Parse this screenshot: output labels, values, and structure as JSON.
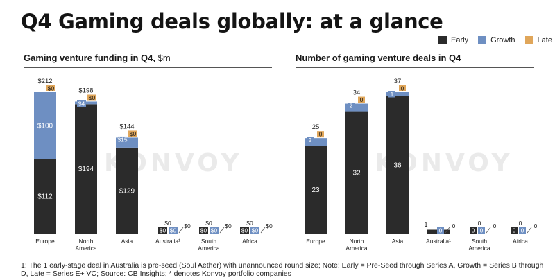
{
  "title": "Q4 Gaming deals globally: at a glance",
  "legend": [
    {
      "label": "Early",
      "color": "#2b2b2b"
    },
    {
      "label": "Growth",
      "color": "#6e8fc2"
    },
    {
      "label": "Late",
      "color": "#e0a65a"
    }
  ],
  "watermark": "KONVOY",
  "footnote": "1: The 1 early-stage deal in Australia is pre-seed (Soul Aether) with unannounced round size; Note: Early = Pre-Seed through Series A, Growth = Series B through D, Late = Series E+ VC; Source: CB Insights; * denotes Konvoy portfolio companies",
  "chart_data": [
    {
      "type": "bar",
      "stacked": true,
      "title": "Gaming venture funding in Q4,",
      "unit_label": "$m",
      "categories": [
        "Europe",
        "North America",
        "Asia",
        "Australia¹",
        "South America",
        "Africa"
      ],
      "ylim": [
        0,
        212
      ],
      "series": [
        {
          "name": "Early",
          "values": [
            112,
            194,
            129,
            0,
            0,
            0
          ],
          "labels": [
            "$112",
            "$194",
            "$129",
            "$0",
            "$0",
            "$0"
          ]
        },
        {
          "name": "Growth",
          "values": [
            100,
            4,
            15,
            0,
            0,
            0
          ],
          "labels": [
            "$100",
            "$4",
            "$15",
            "$0",
            "$0",
            "$0"
          ]
        },
        {
          "name": "Late",
          "values": [
            0,
            0,
            0,
            0,
            0,
            0
          ],
          "labels": [
            "$0",
            "$0",
            "$0",
            "$0",
            "$0",
            "$0"
          ]
        }
      ],
      "totals": [
        212,
        198,
        144,
        0,
        0,
        0
      ],
      "total_labels": [
        "$212",
        "$198",
        "$144",
        "$0",
        "$0",
        "$0"
      ]
    },
    {
      "type": "bar",
      "stacked": true,
      "title": "Number of gaming venture deals in Q4",
      "categories": [
        "Europe",
        "North America",
        "Asia",
        "Australia¹",
        "South America",
        "Africa"
      ],
      "ylim": [
        0,
        37
      ],
      "series": [
        {
          "name": "Early",
          "values": [
            23,
            32,
            36,
            1,
            0,
            0
          ],
          "labels": [
            "23",
            "32",
            "36",
            "1",
            "0",
            "0"
          ]
        },
        {
          "name": "Growth",
          "values": [
            2,
            2,
            1,
            0,
            0,
            0
          ],
          "labels": [
            "2",
            "2",
            "1",
            "0",
            "0",
            "0"
          ]
        },
        {
          "name": "Late",
          "values": [
            0,
            0,
            0,
            0,
            0,
            0
          ],
          "labels": [
            "0",
            "0",
            "0",
            "0",
            "0",
            "0"
          ]
        }
      ],
      "totals": [
        25,
        34,
        37,
        1,
        0,
        0
      ],
      "total_labels": [
        "25",
        "34",
        "37",
        "1",
        "0",
        "0"
      ]
    }
  ]
}
